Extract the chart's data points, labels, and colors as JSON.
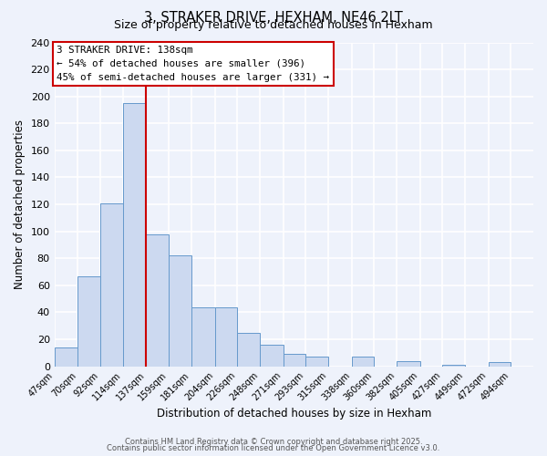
{
  "title": "3, STRAKER DRIVE, HEXHAM, NE46 2LT",
  "subtitle": "Size of property relative to detached houses in Hexham",
  "xlabel": "Distribution of detached houses by size in Hexham",
  "ylabel": "Number of detached properties",
  "bin_labels": [
    "47sqm",
    "70sqm",
    "92sqm",
    "114sqm",
    "137sqm",
    "159sqm",
    "181sqm",
    "204sqm",
    "226sqm",
    "248sqm",
    "271sqm",
    "293sqm",
    "315sqm",
    "338sqm",
    "360sqm",
    "382sqm",
    "405sqm",
    "427sqm",
    "449sqm",
    "472sqm",
    "494sqm"
  ],
  "bin_edges": [
    47,
    70,
    92,
    114,
    137,
    159,
    181,
    204,
    226,
    248,
    271,
    293,
    315,
    338,
    360,
    382,
    405,
    427,
    449,
    472,
    494,
    516
  ],
  "bar_heights": [
    14,
    67,
    121,
    195,
    98,
    82,
    44,
    44,
    25,
    16,
    9,
    7,
    0,
    7,
    0,
    4,
    0,
    1,
    0,
    3,
    0
  ],
  "bar_color": "#ccd9f0",
  "bar_edge_color": "#6699cc",
  "vline_x": 137,
  "vline_color": "#cc0000",
  "annotation_line1": "3 STRAKER DRIVE: 138sqm",
  "annotation_line2": "← 54% of detached houses are smaller (396)",
  "annotation_line3": "45% of semi-detached houses are larger (331) →",
  "ylim": [
    0,
    240
  ],
  "yticks": [
    0,
    20,
    40,
    60,
    80,
    100,
    120,
    140,
    160,
    180,
    200,
    220,
    240
  ],
  "background_color": "#eef2fb",
  "grid_color": "#ffffff",
  "footer_line1": "Contains HM Land Registry data © Crown copyright and database right 2025.",
  "footer_line2": "Contains public sector information licensed under the Open Government Licence v3.0."
}
